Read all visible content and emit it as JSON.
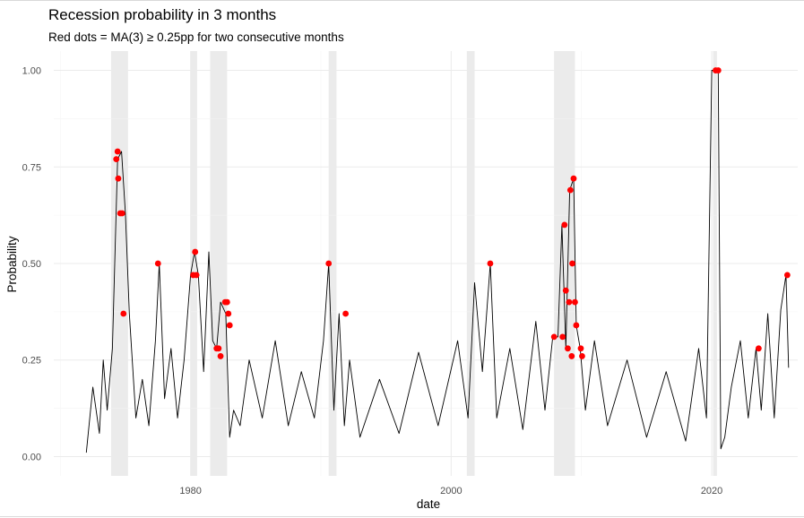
{
  "chart_data": {
    "type": "line",
    "title": "Recession probability in 3 months",
    "subtitle": "Red dots = MA(3) ≥ 0.25pp for two consecutive months",
    "xlabel": "date",
    "ylabel": "Probability",
    "xlim": [
      1969.5,
      2026.6
    ],
    "ylim": [
      -0.05,
      1.05
    ],
    "x_ticks": [
      1980,
      2000,
      2020
    ],
    "y_ticks": [
      0.0,
      0.25,
      0.5,
      0.75,
      1.0
    ],
    "x_tick_labels": [
      "1980",
      "2000",
      "2020"
    ],
    "y_tick_labels": [
      "0.00",
      "0.25",
      "0.50",
      "0.75",
      "1.00"
    ],
    "grid": true,
    "colors": {
      "line": "#000000",
      "dots": "#ff0000",
      "shade": "#ebebeb",
      "grid_major": "#ebebeb",
      "grid_minor": "#f4f4f4"
    },
    "recession_periods": [
      [
        1973.9,
        1975.2
      ],
      [
        1980.0,
        1980.5
      ],
      [
        1981.5,
        1982.8
      ],
      [
        1990.6,
        1991.2
      ],
      [
        2001.2,
        2001.8
      ],
      [
        2007.9,
        2009.5
      ],
      [
        2020.1,
        2020.4
      ]
    ],
    "series": [
      {
        "name": "probability",
        "x": [
          1972.0,
          1972.5,
          1973.0,
          1973.3,
          1973.6,
          1974.0,
          1974.4,
          1974.7,
          1975.0,
          1975.3,
          1975.8,
          1976.3,
          1976.8,
          1977.3,
          1977.6,
          1978.0,
          1978.5,
          1979.0,
          1979.5,
          1980.0,
          1980.3,
          1980.6,
          1981.0,
          1981.4,
          1981.7,
          1982.0,
          1982.3,
          1982.7,
          1983.0,
          1983.3,
          1983.8,
          1984.5,
          1985.5,
          1986.5,
          1987.5,
          1988.5,
          1989.5,
          1990.2,
          1990.6,
          1991.0,
          1991.4,
          1991.8,
          1992.2,
          1993.0,
          1994.5,
          1996.0,
          1997.5,
          1999.0,
          2000.5,
          2001.3,
          2001.8,
          2002.4,
          2003.0,
          2003.5,
          2004.5,
          2005.5,
          2006.5,
          2007.2,
          2007.8,
          2008.2,
          2008.5,
          2008.8,
          2009.1,
          2009.4,
          2009.6,
          2009.9,
          2010.3,
          2011.0,
          2012.0,
          2013.5,
          2015.0,
          2016.5,
          2018.0,
          2019.0,
          2019.6,
          2020.0,
          2020.2,
          2020.5,
          2020.7,
          2021.0,
          2021.5,
          2022.2,
          2022.8,
          2023.4,
          2023.8,
          2024.3,
          2024.8,
          2025.3,
          2025.7,
          2025.9
        ],
        "y": [
          0.01,
          0.18,
          0.06,
          0.25,
          0.12,
          0.28,
          0.77,
          0.79,
          0.63,
          0.37,
          0.1,
          0.2,
          0.08,
          0.3,
          0.5,
          0.15,
          0.28,
          0.1,
          0.25,
          0.47,
          0.53,
          0.47,
          0.22,
          0.53,
          0.3,
          0.28,
          0.4,
          0.37,
          0.05,
          0.12,
          0.08,
          0.25,
          0.1,
          0.3,
          0.08,
          0.22,
          0.1,
          0.3,
          0.5,
          0.12,
          0.37,
          0.08,
          0.25,
          0.05,
          0.2,
          0.06,
          0.27,
          0.08,
          0.3,
          0.1,
          0.45,
          0.22,
          0.5,
          0.1,
          0.28,
          0.07,
          0.35,
          0.12,
          0.31,
          0.31,
          0.6,
          0.28,
          0.69,
          0.72,
          0.34,
          0.28,
          0.12,
          0.3,
          0.08,
          0.25,
          0.05,
          0.22,
          0.04,
          0.28,
          0.1,
          1.0,
          1.0,
          1.0,
          0.02,
          0.05,
          0.18,
          0.3,
          0.1,
          0.28,
          0.12,
          0.37,
          0.1,
          0.38,
          0.47,
          0.23
        ]
      }
    ],
    "dots": {
      "x": [
        1974.3,
        1974.4,
        1974.45,
        1974.6,
        1974.75,
        1974.85,
        1977.5,
        1980.2,
        1980.35,
        1980.45,
        1982.0,
        1982.15,
        1982.3,
        1982.65,
        1982.8,
        1982.9,
        1983.0,
        1990.6,
        1991.9,
        2003.0,
        2007.9,
        2008.55,
        2008.7,
        2008.8,
        2008.95,
        2009.05,
        2009.15,
        2009.25,
        2009.3,
        2009.4,
        2009.5,
        2009.6,
        2009.95,
        2010.05,
        2023.6,
        2025.8,
        2020.3,
        2020.5
      ],
      "y": [
        0.77,
        0.79,
        0.72,
        0.63,
        0.63,
        0.37,
        0.5,
        0.47,
        0.53,
        0.47,
        0.28,
        0.28,
        0.26,
        0.4,
        0.4,
        0.37,
        0.34,
        0.5,
        0.37,
        0.5,
        0.31,
        0.31,
        0.6,
        0.43,
        0.28,
        0.4,
        0.69,
        0.26,
        0.5,
        0.72,
        0.4,
        0.34,
        0.28,
        0.26,
        0.28,
        0.47,
        1.0,
        1.0
      ]
    }
  }
}
